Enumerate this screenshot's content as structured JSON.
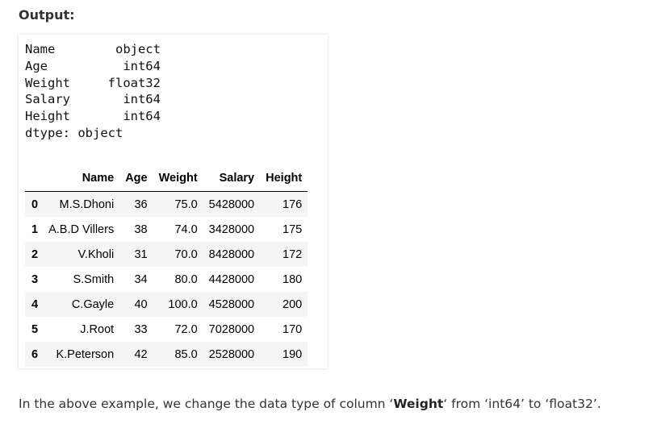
{
  "heading": "Output:",
  "dtypes": [
    "Name        object",
    "Age          int64",
    "Weight     float32",
    "Salary       int64",
    "Height       int64",
    "dtype: object"
  ],
  "table": {
    "columns": [
      "",
      "Name",
      "Age",
      "Weight",
      "Salary",
      "Height"
    ],
    "rows": [
      {
        "index": "0",
        "name": "M.S.Dhoni",
        "age": "36",
        "weight": "75.0",
        "salary": "5428000",
        "height": "176"
      },
      {
        "index": "1",
        "name": "A.B.D Villers",
        "age": "38",
        "weight": "74.0",
        "salary": "3428000",
        "height": "175"
      },
      {
        "index": "2",
        "name": "V.Kholi",
        "age": "31",
        "weight": "70.0",
        "salary": "8428000",
        "height": "172"
      },
      {
        "index": "3",
        "name": "S.Smith",
        "age": "34",
        "weight": "80.0",
        "salary": "4428000",
        "height": "180"
      },
      {
        "index": "4",
        "name": "C.Gayle",
        "age": "40",
        "weight": "100.0",
        "salary": "4528000",
        "height": "200"
      },
      {
        "index": "5",
        "name": "J.Root",
        "age": "33",
        "weight": "72.0",
        "salary": "7028000",
        "height": "170"
      },
      {
        "index": "6",
        "name": "K.Peterson",
        "age": "42",
        "weight": "85.0",
        "salary": "2528000",
        "height": "190"
      }
    ]
  },
  "caption": {
    "before": "In the above example, we change the data type of column ‘",
    "bold": "Weight",
    "after": "‘ from ‘int64’ to ‘float32’."
  }
}
